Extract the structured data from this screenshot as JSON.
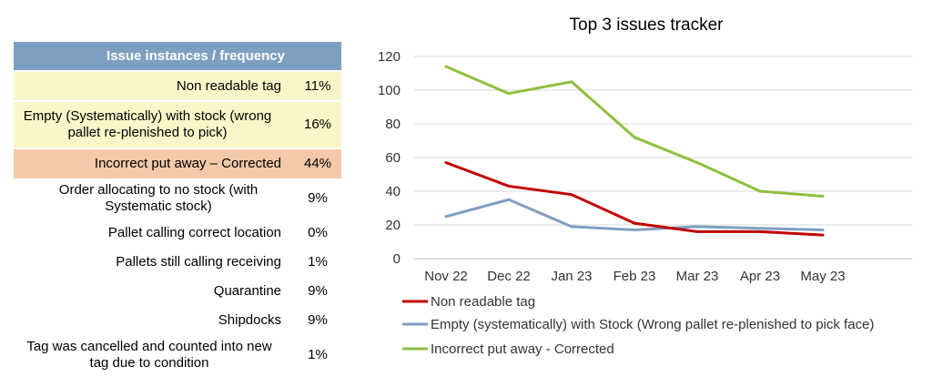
{
  "table": {
    "header": "Issue instances / frequency",
    "rows": [
      {
        "label": "Non readable tag",
        "pct": "11%",
        "highlight": "yellow"
      },
      {
        "label": "Empty (Systematically) with stock (wrong pallet re-plenished to pick)",
        "pct": "16%",
        "highlight": "yellow"
      },
      {
        "label": "Incorrect put away – Corrected",
        "pct": "44%",
        "highlight": "orange"
      },
      {
        "label": "Order allocating to no stock (with Systematic stock)",
        "pct": "9%",
        "highlight": "none"
      },
      {
        "label": "Pallet calling correct location",
        "pct": "0%",
        "highlight": "none"
      },
      {
        "label": "Pallets still calling receiving",
        "pct": "1%",
        "highlight": "none"
      },
      {
        "label": "Quarantine",
        "pct": "9%",
        "highlight": "none"
      },
      {
        "label": "Shipdocks",
        "pct": "9%",
        "highlight": "none"
      },
      {
        "label": "Tag was cancelled and counted into new tag due to condition",
        "pct": "1%",
        "highlight": "none"
      }
    ]
  },
  "chart_data": {
    "type": "line",
    "title": "Top 3 issues tracker",
    "categories": [
      "Nov 22",
      "Dec 22",
      "Jan 23",
      "Feb 23",
      "Mar 23",
      "Apr 23",
      "May 23"
    ],
    "ylim": [
      0,
      120
    ],
    "yticks": [
      0,
      20,
      40,
      60,
      80,
      100,
      120
    ],
    "grid": true,
    "legend_position": "bottom",
    "series": [
      {
        "name": "Non readable tag",
        "color": "#c00000",
        "values": [
          57,
          43,
          38,
          21,
          16,
          16,
          14
        ]
      },
      {
        "name": "Empty (systematically) with Stock (Wrong pallet re-plenished to pick face)",
        "color": "#7f9fc1",
        "values": [
          25,
          35,
          19,
          17,
          19,
          18,
          17
        ]
      },
      {
        "name": "Incorrect put away - Corrected",
        "color": "#8fbf3f",
        "values": [
          114,
          98,
          105,
          72,
          57,
          40,
          37
        ]
      }
    ]
  }
}
